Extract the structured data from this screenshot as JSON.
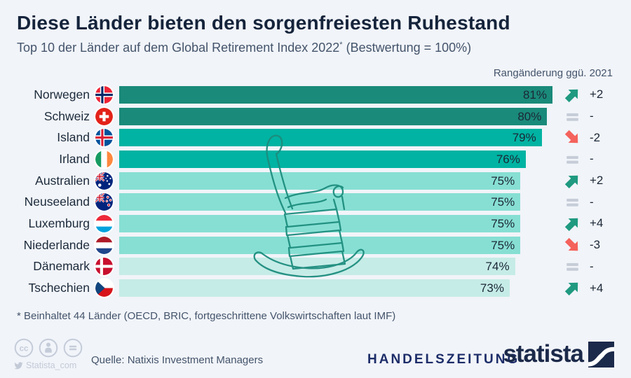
{
  "page": {
    "background": "#f1f4f9"
  },
  "header": {
    "title": "Diese Länder bieten den sorgenfreiesten Ruhestand",
    "subtitle_prefix": "Top 10 der Länder auf dem Global Retirement Index 2022",
    "subtitle_star": "*",
    "subtitle_suffix": " (Bestwertung = 100%)",
    "column_label": "Rangänderung ggü. 2021"
  },
  "chart_data": {
    "type": "bar",
    "orientation": "horizontal",
    "title": "Top 10 der Länder auf dem Global Retirement Index 2022 (Bestwertung = 100%)",
    "unit": "%",
    "axis_max": 81,
    "categories": [
      "Norwegen",
      "Schweiz",
      "Island",
      "Irland",
      "Australien",
      "Neuseeland",
      "Luxemburg",
      "Niederlande",
      "Dänemark",
      "Tschechien"
    ],
    "values": [
      81,
      80,
      79,
      76,
      75,
      75,
      75,
      75,
      74,
      73
    ],
    "rank_changes": [
      "+2",
      "-",
      "-2",
      "-",
      "+2",
      "-",
      "+4",
      "-3",
      "-",
      "+4"
    ],
    "trend_colors": {
      "up": "#1f9a80",
      "down": "#f4625c",
      "same": "#c6cdd8"
    },
    "bar_palette": [
      "#1a8a7a",
      "#00b3a2",
      "#87dfd3",
      "#c6ece7"
    ],
    "rows": [
      {
        "country": "Norwegen",
        "flag": "norway",
        "value": 81,
        "value_label": "81%",
        "trend": "up",
        "change": "+2",
        "bar_color": "#1a8a7a"
      },
      {
        "country": "Schweiz",
        "flag": "switzerland",
        "value": 80,
        "value_label": "80%",
        "trend": "same",
        "change": "-",
        "bar_color": "#1a8a7a"
      },
      {
        "country": "Island",
        "flag": "iceland",
        "value": 79,
        "value_label": "79%",
        "trend": "down",
        "change": "-2",
        "bar_color": "#00b3a2"
      },
      {
        "country": "Irland",
        "flag": "ireland",
        "value": 76,
        "value_label": "76%",
        "trend": "same",
        "change": "-",
        "bar_color": "#00b3a2"
      },
      {
        "country": "Australien",
        "flag": "australia",
        "value": 75,
        "value_label": "75%",
        "trend": "up",
        "change": "+2",
        "bar_color": "#87dfd3"
      },
      {
        "country": "Neuseeland",
        "flag": "newzealand",
        "value": 75,
        "value_label": "75%",
        "trend": "same",
        "change": "-",
        "bar_color": "#87dfd3"
      },
      {
        "country": "Luxemburg",
        "flag": "luxembourg",
        "value": 75,
        "value_label": "75%",
        "trend": "up",
        "change": "+4",
        "bar_color": "#87dfd3"
      },
      {
        "country": "Niederlande",
        "flag": "netherlands",
        "value": 75,
        "value_label": "75%",
        "trend": "down",
        "change": "-3",
        "bar_color": "#87dfd3"
      },
      {
        "country": "Dänemark",
        "flag": "denmark",
        "value": 74,
        "value_label": "74%",
        "trend": "same",
        "change": "-",
        "bar_color": "#c6ece7"
      },
      {
        "country": "Tschechien",
        "flag": "czechia",
        "value": 73,
        "value_label": "73%",
        "trend": "up",
        "change": "+4",
        "bar_color": "#c6ece7"
      }
    ]
  },
  "footnote": "* Beinhaltet 44 Länder (OECD, BRIC, fortgeschrittene Volkswirtschaften laut IMF)",
  "footer": {
    "license_icons": [
      "cc",
      "attribution",
      "nd-equal"
    ],
    "handle": "Statista_com",
    "source": "Quelle: Natixis Investment Managers",
    "brand_left": "HANDELSZEITUNG",
    "brand_right": "statista"
  }
}
